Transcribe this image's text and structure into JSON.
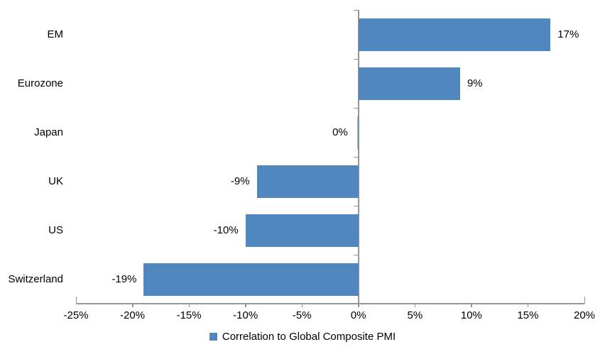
{
  "chart_data": {
    "type": "bar",
    "orientation": "horizontal",
    "title": "",
    "xlabel": "",
    "ylabel": "",
    "grid": false,
    "categories": [
      "EM",
      "Eurozone",
      "Japan",
      "UK",
      "US",
      "Switzerland"
    ],
    "values": [
      17,
      9,
      0,
      -9,
      -10,
      -19
    ],
    "value_labels": [
      "17%",
      "9%",
      "0%",
      "-9%",
      "-10%",
      "-19%"
    ],
    "x_axis": {
      "min": -25,
      "max": 20,
      "tick_step": 5,
      "tick_labels": [
        "-25%",
        "-20%",
        "-15%",
        "-10%",
        "-5%",
        "0%",
        "5%",
        "10%",
        "15%",
        "20%"
      ]
    },
    "legend": {
      "label": "Correlation to Global Composite PMI",
      "position": "bottom"
    },
    "colors": {
      "bar": "#4F87BE",
      "axis": "#969696",
      "text": "#000000",
      "background": "#FFFFFF"
    }
  }
}
